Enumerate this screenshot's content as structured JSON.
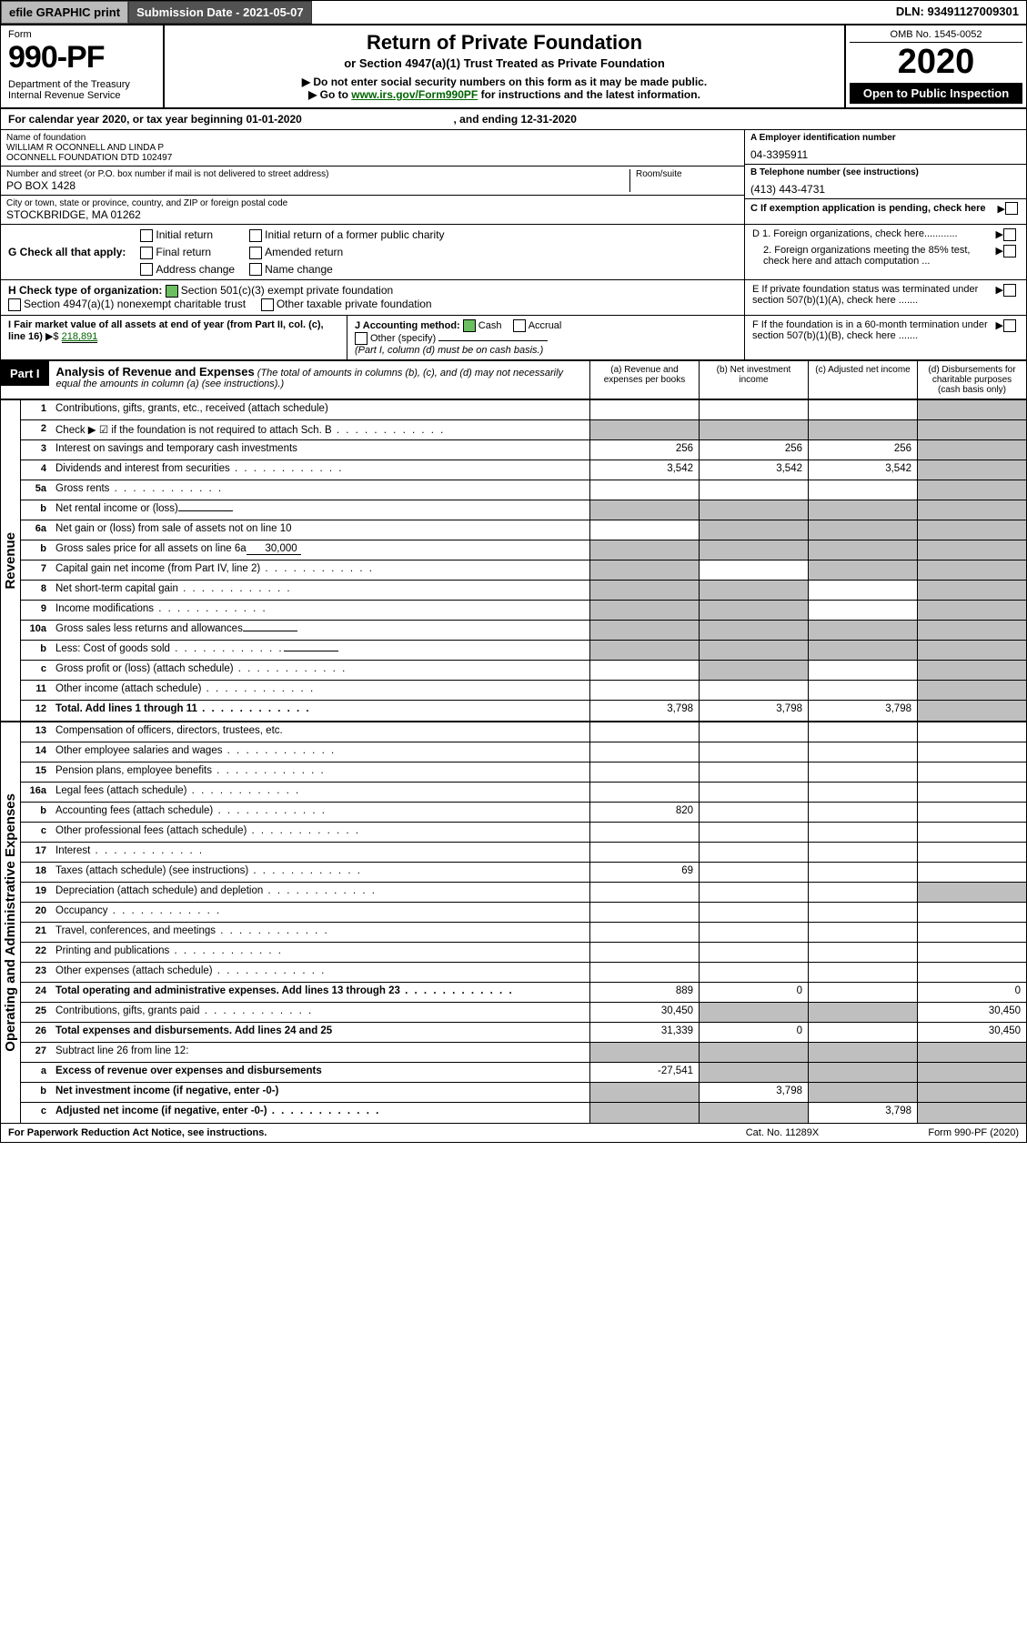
{
  "topbar": {
    "efile": "efile GRAPHIC print",
    "submission": "Submission Date - 2021-05-07",
    "dln": "DLN: 93491127009301"
  },
  "hdr": {
    "form_word": "Form",
    "form_num": "990-PF",
    "dept": "Department of the Treasury\nInternal Revenue Service",
    "title": "Return of Private Foundation",
    "subtitle": "or Section 4947(a)(1) Trust Treated as Private Foundation",
    "note1": "▶ Do not enter social security numbers on this form as it may be made public.",
    "note2_pre": "▶ Go to ",
    "note2_link": "www.irs.gov/Form990PF",
    "note2_post": " for instructions and the latest information.",
    "omb": "OMB No. 1545-0052",
    "year": "2020",
    "open": "Open to Public Inspection"
  },
  "cal": {
    "text": "For calendar year 2020, or tax year beginning 01-01-2020",
    "ending": ", and ending 12-31-2020"
  },
  "info": {
    "name_lbl": "Name of foundation",
    "name": "WILLIAM R OCONNELL AND LINDA P\nOCONNELL FOUNDATION DTD 102497",
    "addr_lbl": "Number and street (or P.O. box number if mail is not delivered to street address)",
    "addr": "PO BOX 1428",
    "room_lbl": "Room/suite",
    "room": "",
    "city_lbl": "City or town, state or province, country, and ZIP or foreign postal code",
    "city": "STOCKBRIDGE, MA  01262",
    "A_lbl": "A Employer identification number",
    "A": "04-3395911",
    "B_lbl": "B Telephone number (see instructions)",
    "B": "(413) 443-4731",
    "C_lbl": "C If exemption application is pending, check here",
    "D1": "D 1. Foreign organizations, check here............",
    "D2": "2. Foreign organizations meeting the 85% test, check here and attach computation ...",
    "E": "E  If private foundation status was terminated under section 507(b)(1)(A), check here .......",
    "F": "F  If the foundation is in a 60-month termination under section 507(b)(1)(B), check here ......."
  },
  "G": {
    "label": "G Check all that apply:",
    "opts": [
      "Initial return",
      "Final return",
      "Address change",
      "Initial return of a former public charity",
      "Amended return",
      "Name change"
    ]
  },
  "H": {
    "label": "H Check type of organization:",
    "opt1": "Section 501(c)(3) exempt private foundation",
    "opt2": "Section 4947(a)(1) nonexempt charitable trust",
    "opt3": "Other taxable private foundation"
  },
  "I": {
    "label": "I Fair market value of all assets at end of year (from Part II, col. (c), line 16)",
    "prefix": "▶$",
    "value": "218,891"
  },
  "J": {
    "label": "J Accounting method:",
    "cash": "Cash",
    "accrual": "Accrual",
    "other": "Other (specify)",
    "note": "(Part I, column (d) must be on cash basis.)"
  },
  "part1": {
    "label": "Part I",
    "title": "Analysis of Revenue and Expenses",
    "title_note": "(The total of amounts in columns (b), (c), and (d) may not necessarily equal the amounts in column (a) (see instructions).)",
    "cols": [
      "(a) Revenue and expenses per books",
      "(b) Net investment income",
      "(c) Adjusted net income",
      "(d) Disbursements for charitable purposes (cash basis only)"
    ]
  },
  "revenue_side": "Revenue",
  "expense_side": "Operating and Administrative Expenses",
  "lines": {
    "1": {
      "n": "1",
      "t": "Contributions, gifts, grants, etc., received (attach schedule)",
      "a": "",
      "b": "",
      "c": "",
      "d": "grey"
    },
    "2": {
      "n": "2",
      "t": "Check ▶ ☑ if the foundation is not required to attach Sch. B",
      "dots": true,
      "a": "grey",
      "b": "grey",
      "c": "grey",
      "d": "grey",
      "att": false
    },
    "3": {
      "n": "3",
      "t": "Interest on savings and temporary cash investments",
      "a": "256",
      "b": "256",
      "c": "256",
      "d": "grey"
    },
    "4": {
      "n": "4",
      "t": "Dividends and interest from securities",
      "dots": true,
      "a": "3,542",
      "b": "3,542",
      "c": "3,542",
      "d": "grey"
    },
    "5a": {
      "n": "5a",
      "t": "Gross rents",
      "dots": true,
      "a": "",
      "b": "",
      "c": "",
      "d": "grey"
    },
    "5b": {
      "n": "b",
      "t": "Net rental income or (loss)",
      "a": "grey",
      "b": "grey",
      "c": "grey",
      "d": "grey",
      "inline": ""
    },
    "6a": {
      "n": "6a",
      "t": "Net gain or (loss) from sale of assets not on line 10",
      "a": "",
      "b": "grey",
      "c": "grey",
      "d": "grey"
    },
    "6b": {
      "n": "b",
      "t": "Gross sales price for all assets on line 6a",
      "inline": "30,000",
      "a": "grey",
      "b": "grey",
      "c": "grey",
      "d": "grey"
    },
    "7": {
      "n": "7",
      "t": "Capital gain net income (from Part IV, line 2)",
      "dots": true,
      "a": "grey",
      "b": "",
      "c": "grey",
      "d": "grey"
    },
    "8": {
      "n": "8",
      "t": "Net short-term capital gain",
      "dots": true,
      "a": "grey",
      "b": "grey",
      "c": "",
      "d": "grey"
    },
    "9": {
      "n": "9",
      "t": "Income modifications",
      "dots": true,
      "a": "grey",
      "b": "grey",
      "c": "",
      "d": "grey"
    },
    "10a": {
      "n": "10a",
      "t": "Gross sales less returns and allowances",
      "inline": "",
      "a": "grey",
      "b": "grey",
      "c": "grey",
      "d": "grey"
    },
    "10b": {
      "n": "b",
      "t": "Less: Cost of goods sold",
      "dots": true,
      "inline": "",
      "a": "grey",
      "b": "grey",
      "c": "grey",
      "d": "grey"
    },
    "10c": {
      "n": "c",
      "t": "Gross profit or (loss) (attach schedule)",
      "dots": true,
      "a": "",
      "b": "grey",
      "c": "",
      "d": "grey"
    },
    "11": {
      "n": "11",
      "t": "Other income (attach schedule)",
      "dots": true,
      "a": "",
      "b": "",
      "c": "",
      "d": "grey"
    },
    "12": {
      "n": "12",
      "t": "Total. Add lines 1 through 11",
      "dots": true,
      "bold": true,
      "a": "3,798",
      "b": "3,798",
      "c": "3,798",
      "d": "grey"
    },
    "13": {
      "n": "13",
      "t": "Compensation of officers, directors, trustees, etc.",
      "a": "",
      "b": "",
      "c": "",
      "d": ""
    },
    "14": {
      "n": "14",
      "t": "Other employee salaries and wages",
      "dots": true,
      "a": "",
      "b": "",
      "c": "",
      "d": ""
    },
    "15": {
      "n": "15",
      "t": "Pension plans, employee benefits",
      "dots": true,
      "a": "",
      "b": "",
      "c": "",
      "d": ""
    },
    "16a": {
      "n": "16a",
      "t": "Legal fees (attach schedule)",
      "dots": true,
      "a": "",
      "b": "",
      "c": "",
      "d": ""
    },
    "16b": {
      "n": "b",
      "t": "Accounting fees (attach schedule)",
      "dots": true,
      "a": "820",
      "b": "",
      "c": "",
      "d": ""
    },
    "16c": {
      "n": "c",
      "t": "Other professional fees (attach schedule)",
      "dots": true,
      "a": "",
      "b": "",
      "c": "",
      "d": ""
    },
    "17": {
      "n": "17",
      "t": "Interest",
      "dots": true,
      "a": "",
      "b": "",
      "c": "",
      "d": ""
    },
    "18": {
      "n": "18",
      "t": "Taxes (attach schedule) (see instructions)",
      "dots": true,
      "a": "69",
      "b": "",
      "c": "",
      "d": ""
    },
    "19": {
      "n": "19",
      "t": "Depreciation (attach schedule) and depletion",
      "dots": true,
      "a": "",
      "b": "",
      "c": "",
      "d": "grey"
    },
    "20": {
      "n": "20",
      "t": "Occupancy",
      "dots": true,
      "a": "",
      "b": "",
      "c": "",
      "d": ""
    },
    "21": {
      "n": "21",
      "t": "Travel, conferences, and meetings",
      "dots": true,
      "a": "",
      "b": "",
      "c": "",
      "d": ""
    },
    "22": {
      "n": "22",
      "t": "Printing and publications",
      "dots": true,
      "a": "",
      "b": "",
      "c": "",
      "d": ""
    },
    "23": {
      "n": "23",
      "t": "Other expenses (attach schedule)",
      "dots": true,
      "a": "",
      "b": "",
      "c": "",
      "d": ""
    },
    "24": {
      "n": "24",
      "t": "Total operating and administrative expenses. Add lines 13 through 23",
      "dots": true,
      "bold": true,
      "a": "889",
      "b": "0",
      "c": "",
      "d": "0"
    },
    "25": {
      "n": "25",
      "t": "Contributions, gifts, grants paid",
      "dots": true,
      "a": "30,450",
      "b": "grey",
      "c": "grey",
      "d": "30,450"
    },
    "26": {
      "n": "26",
      "t": "Total expenses and disbursements. Add lines 24 and 25",
      "bold": true,
      "a": "31,339",
      "b": "0",
      "c": "",
      "d": "30,450"
    },
    "27": {
      "n": "27",
      "t": "Subtract line 26 from line 12:",
      "a": "grey",
      "b": "grey",
      "c": "grey",
      "d": "grey"
    },
    "27a": {
      "n": "a",
      "t": "Excess of revenue over expenses and disbursements",
      "bold": true,
      "a": "-27,541",
      "b": "grey",
      "c": "grey",
      "d": "grey"
    },
    "27b": {
      "n": "b",
      "t": "Net investment income (if negative, enter -0-)",
      "bold": true,
      "a": "grey",
      "b": "3,798",
      "c": "grey",
      "d": "grey"
    },
    "27c": {
      "n": "c",
      "t": "Adjusted net income (if negative, enter -0-)",
      "dots": true,
      "bold": true,
      "a": "grey",
      "b": "grey",
      "c": "3,798",
      "d": "grey"
    }
  },
  "line_order_revenue": [
    "1",
    "2",
    "3",
    "4",
    "5a",
    "5b",
    "6a",
    "6b",
    "7",
    "8",
    "9",
    "10a",
    "10b",
    "10c",
    "11",
    "12"
  ],
  "line_order_expense": [
    "13",
    "14",
    "15",
    "16a",
    "16b",
    "16c",
    "17",
    "18",
    "19",
    "20",
    "21",
    "22",
    "23",
    "24",
    "25",
    "26",
    "27",
    "27a",
    "27b",
    "27c"
  ],
  "footer": {
    "l": "For Paperwork Reduction Act Notice, see instructions.",
    "m": "Cat. No. 11289X",
    "r": "Form 990-PF (2020)"
  },
  "colors": {
    "green": "#6bbf60",
    "greycell": "#bfbfbf",
    "darkbar": "#525252"
  }
}
